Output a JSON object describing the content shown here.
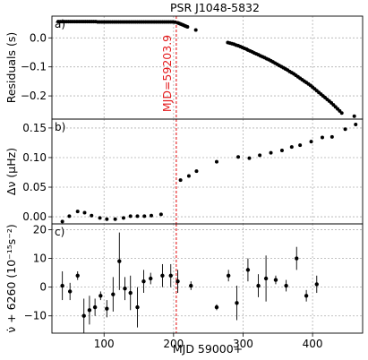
{
  "chart_data": {
    "type": "scatter",
    "title": "PSR J1048-5832",
    "xlabel": "MJD 59000+",
    "xlim": [
      25,
      472
    ],
    "xticks": [
      100,
      200,
      300,
      400
    ],
    "grid": true,
    "glitch": {
      "x": 203.9,
      "label": "MJD=59203.9",
      "color": "#e41a1c"
    },
    "panels": [
      {
        "panel_label": "a)",
        "ylabel": "Residuals (s)",
        "ylim": [
          -0.28,
          0.075
        ],
        "yticks": [
          0.0,
          -0.1,
          -0.2
        ],
        "tick_labels": [
          "0.0",
          "−0.1",
          "−0.2"
        ],
        "points": [
          [
            34,
            0.056
          ],
          [
            37,
            0.056
          ],
          [
            40,
            0.056
          ],
          [
            43,
            0.056
          ],
          [
            46,
            0.056
          ],
          [
            49,
            0.056
          ],
          [
            52,
            0.056
          ],
          [
            55,
            0.056
          ],
          [
            58,
            0.056
          ],
          [
            61,
            0.056
          ],
          [
            64,
            0.056
          ],
          [
            67,
            0.056
          ],
          [
            70,
            0.056
          ],
          [
            73,
            0.056
          ],
          [
            76,
            0.056
          ],
          [
            79,
            0.056
          ],
          [
            82,
            0.056
          ],
          [
            85,
            0.056
          ],
          [
            88,
            0.056
          ],
          [
            91,
            0.055
          ],
          [
            94,
            0.055
          ],
          [
            97,
            0.055
          ],
          [
            100,
            0.055
          ],
          [
            103,
            0.055
          ],
          [
            106,
            0.055
          ],
          [
            109,
            0.055
          ],
          [
            112,
            0.055
          ],
          [
            115,
            0.055
          ],
          [
            118,
            0.055
          ],
          [
            121,
            0.055
          ],
          [
            124,
            0.055
          ],
          [
            127,
            0.055
          ],
          [
            130,
            0.055
          ],
          [
            133,
            0.055
          ],
          [
            136,
            0.055
          ],
          [
            139,
            0.055
          ],
          [
            142,
            0.055
          ],
          [
            145,
            0.055
          ],
          [
            148,
            0.055
          ],
          [
            151,
            0.055
          ],
          [
            154,
            0.055
          ],
          [
            157,
            0.055
          ],
          [
            160,
            0.055
          ],
          [
            163,
            0.055
          ],
          [
            166,
            0.055
          ],
          [
            169,
            0.055
          ],
          [
            172,
            0.055
          ],
          [
            175,
            0.055
          ],
          [
            178,
            0.055
          ],
          [
            181,
            0.055
          ],
          [
            184,
            0.055
          ],
          [
            187,
            0.055
          ],
          [
            190,
            0.055
          ],
          [
            193,
            0.055
          ],
          [
            196,
            0.055
          ],
          [
            199,
            0.055
          ],
          [
            202,
            0.054
          ],
          [
            206,
            0.052
          ],
          [
            208,
            0.05
          ],
          [
            210,
            0.048
          ],
          [
            212,
            0.046
          ],
          [
            214,
            0.044
          ],
          [
            216,
            0.042
          ],
          [
            218,
            0.04
          ],
          [
            220,
            0.038
          ],
          [
            232,
            0.027
          ],
          [
            278,
            -0.016
          ],
          [
            281,
            -0.018
          ],
          [
            284,
            -0.02
          ],
          [
            287,
            -0.022
          ],
          [
            290,
            -0.025
          ],
          [
            293,
            -0.027
          ],
          [
            296,
            -0.03
          ],
          [
            299,
            -0.033
          ],
          [
            302,
            -0.036
          ],
          [
            305,
            -0.039
          ],
          [
            307,
            -0.042
          ],
          [
            310,
            -0.045
          ],
          [
            313,
            -0.048
          ],
          [
            316,
            -0.052
          ],
          [
            319,
            -0.055
          ],
          [
            322,
            -0.058
          ],
          [
            325,
            -0.062
          ],
          [
            328,
            -0.065
          ],
          [
            331,
            -0.068
          ],
          [
            334,
            -0.072
          ],
          [
            337,
            -0.075
          ],
          [
            340,
            -0.079
          ],
          [
            343,
            -0.083
          ],
          [
            346,
            -0.087
          ],
          [
            349,
            -0.091
          ],
          [
            352,
            -0.095
          ],
          [
            355,
            -0.099
          ],
          [
            358,
            -0.103
          ],
          [
            361,
            -0.107
          ],
          [
            364,
            -0.111
          ],
          [
            367,
            -0.116
          ],
          [
            370,
            -0.12
          ],
          [
            373,
            -0.124
          ],
          [
            376,
            -0.129
          ],
          [
            379,
            -0.134
          ],
          [
            382,
            -0.139
          ],
          [
            385,
            -0.144
          ],
          [
            388,
            -0.149
          ],
          [
            391,
            -0.154
          ],
          [
            394,
            -0.159
          ],
          [
            397,
            -0.164
          ],
          [
            400,
            -0.17
          ],
          [
            403,
            -0.176
          ],
          [
            406,
            -0.182
          ],
          [
            409,
            -0.188
          ],
          [
            412,
            -0.194
          ],
          [
            415,
            -0.2
          ],
          [
            418,
            -0.206
          ],
          [
            421,
            -0.212
          ],
          [
            424,
            -0.218
          ],
          [
            427,
            -0.224
          ],
          [
            430,
            -0.231
          ],
          [
            433,
            -0.238
          ],
          [
            436,
            -0.245
          ],
          [
            439,
            -0.252
          ],
          [
            442,
            -0.259
          ],
          [
            460,
            -0.27
          ]
        ]
      },
      {
        "panel_label": "b)",
        "ylabel": "Δν (μHz)",
        "ylim": [
          -0.012,
          0.165
        ],
        "yticks": [
          0.0,
          0.05,
          0.1,
          0.15
        ],
        "tick_labels": [
          "0.00",
          "0.05",
          "0.10",
          "0.15"
        ],
        "points": [
          [
            40,
            -0.008
          ],
          [
            50,
            0.001
          ],
          [
            62,
            0.009
          ],
          [
            72,
            0.007
          ],
          [
            82,
            0.002
          ],
          [
            94,
            -0.002
          ],
          [
            104,
            -0.004
          ],
          [
            116,
            -0.004
          ],
          [
            128,
            -0.002
          ],
          [
            138,
            0.001
          ],
          [
            148,
            0.001
          ],
          [
            158,
            0.001
          ],
          [
            168,
            0.002
          ],
          [
            182,
            0.004
          ],
          [
            210,
            0.062
          ],
          [
            222,
            0.069
          ],
          [
            233,
            0.077
          ],
          [
            262,
            0.093
          ],
          [
            293,
            0.101
          ],
          [
            309,
            0.099
          ],
          [
            324,
            0.104
          ],
          [
            340,
            0.108
          ],
          [
            356,
            0.112
          ],
          [
            370,
            0.118
          ],
          [
            382,
            0.121
          ],
          [
            398,
            0.127
          ],
          [
            414,
            0.134
          ],
          [
            428,
            0.135
          ],
          [
            447,
            0.148
          ],
          [
            462,
            0.156
          ]
        ]
      },
      {
        "panel_label": "c)",
        "ylabel": "ν̇ + 6260 (10⁻¹⁵s⁻²)",
        "ylim": [
          -16,
          22
        ],
        "yticks": [
          -10,
          0,
          10,
          20
        ],
        "tick_labels": [
          "−10",
          "0",
          "10",
          "20"
        ],
        "points": [
          {
            "x": 40,
            "y": 0.5,
            "err": 5
          },
          {
            "x": 51,
            "y": -1.5,
            "err": 3
          },
          {
            "x": 62,
            "y": 4,
            "err": 1.5
          },
          {
            "x": 71,
            "y": -10,
            "err": 6
          },
          {
            "x": 79,
            "y": -8,
            "err": 5
          },
          {
            "x": 87,
            "y": -7,
            "err": 3
          },
          {
            "x": 95,
            "y": -3,
            "err": 1.5
          },
          {
            "x": 104,
            "y": -7.5,
            "err": 3
          },
          {
            "x": 113,
            "y": -2.5,
            "err": 6
          },
          {
            "x": 122,
            "y": 9,
            "err": 10
          },
          {
            "x": 130,
            "y": -0.5,
            "err": 4
          },
          {
            "x": 138,
            "y": -2,
            "err": 6
          },
          {
            "x": 148,
            "y": -7,
            "err": 7
          },
          {
            "x": 157,
            "y": 2,
            "err": 4
          },
          {
            "x": 167,
            "y": 3,
            "err": 2
          },
          {
            "x": 184,
            "y": 4,
            "err": 4
          },
          {
            "x": 196,
            "y": 4,
            "err": 4
          },
          {
            "x": 206,
            "y": 2,
            "err": 4
          },
          {
            "x": 225,
            "y": 0.5,
            "err": 1.5
          },
          {
            "x": 262,
            "y": -7,
            "err": 1
          },
          {
            "x": 279,
            "y": 4,
            "err": 2
          },
          {
            "x": 291,
            "y": -5.5,
            "err": 6
          },
          {
            "x": 307,
            "y": 6,
            "err": 4
          },
          {
            "x": 322,
            "y": 0.5,
            "err": 4
          },
          {
            "x": 333,
            "y": 3,
            "err": 8
          },
          {
            "x": 347,
            "y": 2.5,
            "err": 1.5
          },
          {
            "x": 362,
            "y": 0.5,
            "err": 2
          },
          {
            "x": 377,
            "y": 10,
            "err": 4
          },
          {
            "x": 391,
            "y": -3,
            "err": 2
          },
          {
            "x": 406,
            "y": 1,
            "err": 3
          }
        ]
      }
    ]
  }
}
